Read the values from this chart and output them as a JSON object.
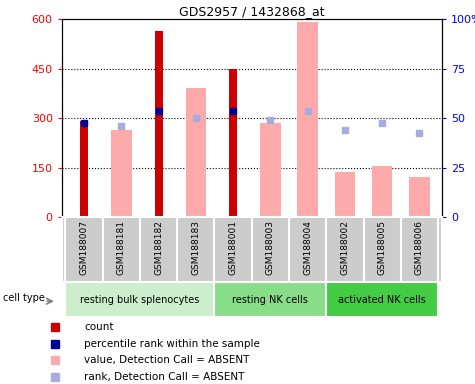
{
  "title": "GDS2957 / 1432868_at",
  "samples": [
    "GSM188007",
    "GSM188181",
    "GSM188182",
    "GSM188183",
    "GSM188001",
    "GSM188003",
    "GSM188004",
    "GSM188002",
    "GSM188005",
    "GSM188006"
  ],
  "cell_groups": [
    {
      "label": "resting bulk splenocytes",
      "start": 0,
      "end": 4,
      "color": "#cceecc"
    },
    {
      "label": "resting NK cells",
      "start": 4,
      "end": 7,
      "color": "#88dd88"
    },
    {
      "label": "activated NK cells",
      "start": 7,
      "end": 10,
      "color": "#44cc44"
    }
  ],
  "count_values": [
    290,
    null,
    565,
    null,
    450,
    null,
    null,
    null,
    null,
    null
  ],
  "rank_values": [
    285,
    null,
    320,
    null,
    320,
    null,
    null,
    null,
    null,
    null
  ],
  "absent_values": [
    null,
    265,
    null,
    390,
    null,
    285,
    590,
    135,
    155,
    120
  ],
  "absent_rank_values": [
    null,
    275,
    null,
    300,
    null,
    295,
    320,
    265,
    285,
    255
  ],
  "ylim": [
    0,
    600
  ],
  "yticks_left": [
    0,
    150,
    300,
    450,
    600
  ],
  "yticks_right": [
    0,
    25,
    50,
    75,
    100
  ],
  "yticklabels_right": [
    "0",
    "25",
    "50",
    "75",
    "100%"
  ],
  "count_color": "#cc0000",
  "rank_color": "#000099",
  "absent_bar_color": "#ffaaaa",
  "absent_rank_color": "#aaaadd",
  "bg_color": "#cccccc",
  "plot_bg": "white"
}
